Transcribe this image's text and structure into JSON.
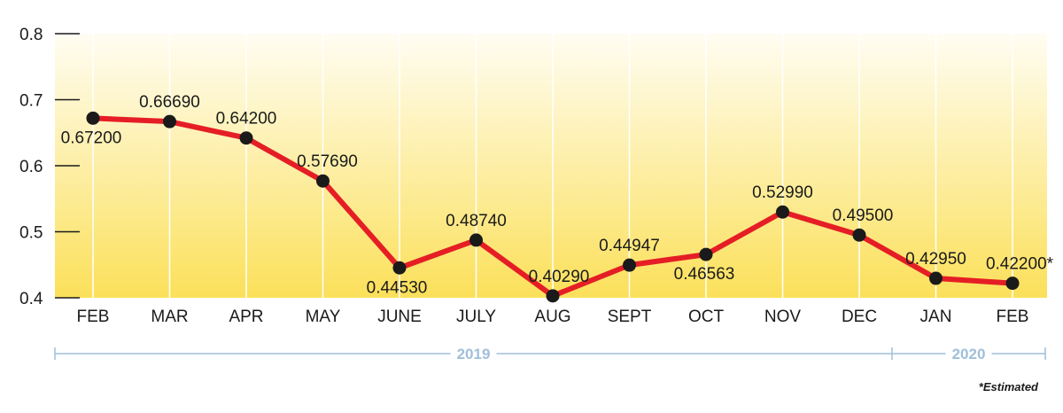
{
  "chart_data": {
    "type": "line",
    "categories": [
      "FEB",
      "MAR",
      "APR",
      "MAY",
      "JUNE",
      "JULY",
      "AUG",
      "SEPT",
      "OCT",
      "NOV",
      "DEC",
      "JAN",
      "FEB"
    ],
    "values": [
      0.672,
      0.6669,
      0.642,
      0.5769,
      0.4453,
      0.4874,
      0.4029,
      0.44947,
      0.46563,
      0.5299,
      0.495,
      0.4295,
      0.422
    ],
    "data_labels": [
      "0.67200",
      "0.66690",
      "0.64200",
      "0.57690",
      "0.44530",
      "0.48740",
      "0.40290",
      "0.44947",
      "0.46563",
      "0.52990",
      "0.49500",
      "0.42950",
      "0.42200*"
    ],
    "ylim": [
      0.4,
      0.8
    ],
    "y_ticks": [
      "0.8",
      "0.7",
      "0.6",
      "0.5",
      "0.4"
    ],
    "year_groups": [
      {
        "label": "2019",
        "from": 0,
        "to": 10
      },
      {
        "label": "2020",
        "from": 11,
        "to": 12
      }
    ],
    "footnote": "*Estimated",
    "grid": "vertical",
    "colors": {
      "line": "#e51e25",
      "marker": "#1a1a1a",
      "background_top": "#fffdf3",
      "background_bottom": "#fbe05a",
      "year_bracket": "#9fbfdb"
    }
  }
}
